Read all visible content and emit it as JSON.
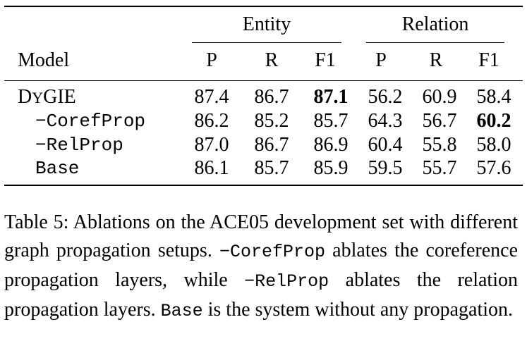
{
  "table": {
    "group_headers": {
      "entity": "Entity",
      "relation": "Relation"
    },
    "column_headers": {
      "model": "Model",
      "ent_p": "P",
      "ent_r": "R",
      "ent_f1": "F1",
      "rel_p": "P",
      "rel_r": "R",
      "rel_f1": "F1"
    },
    "rows": [
      {
        "model_first": "D",
        "model_rest": "Y",
        "model_tail": "GIE",
        "model_full": "DyGIE",
        "ent_p": "87.4",
        "ent_r": "86.7",
        "ent_f1": "87.1",
        "rel_p": "56.2",
        "rel_r": "60.9",
        "rel_f1": "58.4"
      },
      {
        "model": "−CorefProp",
        "ent_p": "86.2",
        "ent_r": "85.2",
        "ent_f1": "85.7",
        "rel_p": "64.3",
        "rel_r": "56.7",
        "rel_f1": "60.2"
      },
      {
        "model": "−RelProp",
        "ent_p": "87.0",
        "ent_r": "86.7",
        "ent_f1": "86.9",
        "rel_p": "60.4",
        "rel_r": "55.8",
        "rel_f1": "58.0"
      },
      {
        "model": "Base",
        "ent_p": "86.1",
        "ent_r": "85.7",
        "ent_f1": "85.9",
        "rel_p": "59.5",
        "rel_r": "55.7",
        "rel_f1": "57.6"
      }
    ],
    "bold_cells": [
      "rows.0.ent_f1",
      "rows.1.rel_f1"
    ]
  },
  "caption": {
    "part1": "Table 5: Ablations on the ACE05 development set with different graph propagation setups. ",
    "code1": "−CorefProp",
    "part2": " ablates the coreference propagation layers, while ",
    "code2": "−RelProp",
    "part3": " ablates the relation propagation layers. ",
    "code3": "Base",
    "part4": " is the system without any propagation."
  }
}
